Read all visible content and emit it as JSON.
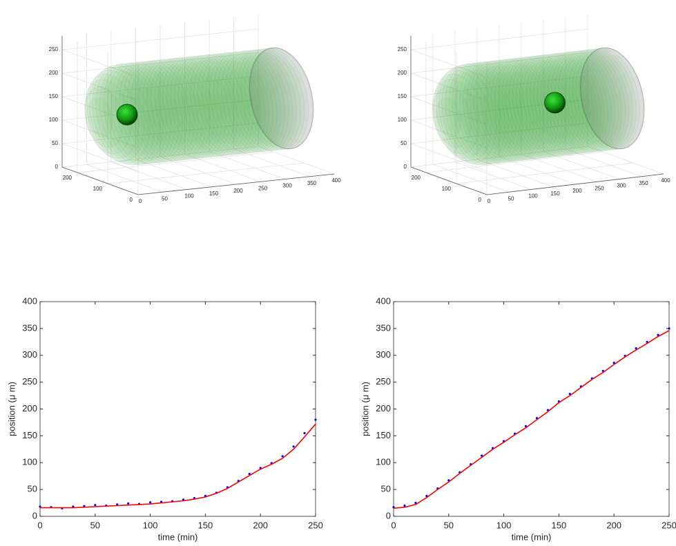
{
  "chart_data": [
    {
      "type": "volume3d",
      "xlim": [
        0,
        400
      ],
      "ylim": [
        0,
        250
      ],
      "zlim": [
        0,
        280
      ],
      "xticks": [
        0,
        50,
        100,
        150,
        200,
        250,
        300,
        350,
        400
      ],
      "yticks": [
        0,
        100,
        200
      ],
      "zticks": [
        0,
        50,
        100,
        150,
        200,
        250
      ],
      "grid": true,
      "color": "#2e9e2e",
      "cell": {
        "x": 55,
        "y": 125,
        "z": 135
      }
    },
    {
      "type": "volume3d",
      "xlim": [
        0,
        400
      ],
      "ylim": [
        0,
        250
      ],
      "zlim": [
        0,
        280
      ],
      "xticks": [
        0,
        50,
        100,
        150,
        200,
        250,
        300,
        350,
        400
      ],
      "yticks": [
        0,
        100,
        200
      ],
      "zticks": [
        0,
        50,
        100,
        150,
        200,
        250
      ],
      "grid": true,
      "color": "#2e9e2e",
      "cell": {
        "x": 240,
        "y": 125,
        "z": 140
      }
    },
    {
      "type": "line",
      "xlabel": "time (min)",
      "ylabel": "position (μ m)",
      "x": [
        0,
        10,
        20,
        30,
        40,
        50,
        60,
        70,
        80,
        90,
        100,
        110,
        120,
        130,
        140,
        150,
        160,
        170,
        180,
        190,
        200,
        210,
        220,
        230,
        240,
        250
      ],
      "xlim": [
        0,
        250
      ],
      "ylim": [
        0,
        400
      ],
      "xticks": [
        0,
        50,
        100,
        150,
        200,
        250
      ],
      "yticks": [
        0,
        50,
        100,
        150,
        200,
        250,
        300,
        350,
        400
      ],
      "series": [
        {
          "color": "#0000ff",
          "style": "dots",
          "values": [
            18,
            17,
            15,
            18,
            19,
            21,
            20,
            22,
            24,
            23,
            26,
            27,
            28,
            31,
            34,
            38,
            44,
            54,
            66,
            79,
            90,
            99,
            112,
            130,
            155,
            180
          ]
        },
        {
          "color": "#ff0000",
          "style": "line",
          "values": [
            16,
            16,
            16,
            16,
            17,
            18,
            19,
            20,
            21,
            22,
            23,
            25,
            27,
            29,
            32,
            36,
            43,
            52,
            64,
            76,
            88,
            97,
            108,
            125,
            148,
            172
          ]
        }
      ]
    },
    {
      "type": "line",
      "xlabel": "time (min)",
      "ylabel": "position (μ m)",
      "x": [
        0,
        10,
        20,
        30,
        40,
        50,
        60,
        70,
        80,
        90,
        100,
        110,
        120,
        130,
        140,
        150,
        160,
        170,
        180,
        190,
        200,
        210,
        220,
        230,
        240,
        250
      ],
      "xlim": [
        0,
        250
      ],
      "ylim": [
        0,
        400
      ],
      "xticks": [
        0,
        50,
        100,
        150,
        200,
        250
      ],
      "yticks": [
        0,
        50,
        100,
        150,
        200,
        250,
        300,
        350,
        400
      ],
      "series": [
        {
          "color": "#0000ff",
          "style": "dots",
          "values": [
            17,
            20,
            25,
            38,
            52,
            67,
            82,
            97,
            113,
            127,
            140,
            154,
            168,
            183,
            198,
            214,
            228,
            242,
            257,
            271,
            286,
            299,
            313,
            325,
            338,
            350
          ]
        },
        {
          "color": "#ff0000",
          "style": "line",
          "values": [
            15,
            17,
            22,
            35,
            50,
            64,
            80,
            95,
            110,
            125,
            138,
            152,
            165,
            180,
            195,
            212,
            225,
            240,
            255,
            268,
            283,
            297,
            310,
            322,
            335,
            346
          ]
        }
      ]
    }
  ]
}
